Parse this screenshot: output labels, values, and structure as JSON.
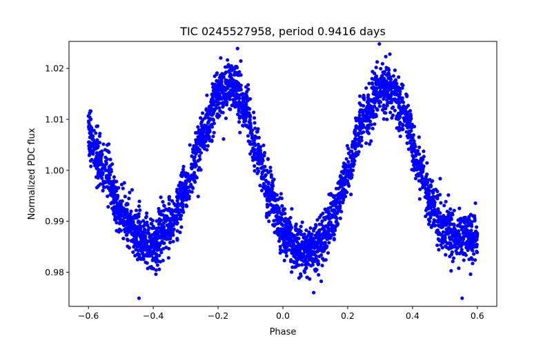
{
  "chart_data": {
    "type": "scatter",
    "title": "TIC 0245527958, period 0.9416 days",
    "xlabel": "Phase",
    "ylabel": "Normalized PDC flux",
    "xlim": [
      -0.66,
      0.66
    ],
    "ylim": [
      0.9733,
      1.0253
    ],
    "xticks": [
      -0.6,
      -0.4,
      -0.2,
      0.0,
      0.2,
      0.4,
      0.6
    ],
    "xtick_labels": [
      "−0.6",
      "−0.4",
      "−0.2",
      "0.0",
      "0.2",
      "0.4",
      "0.6"
    ],
    "yticks": [
      0.98,
      0.99,
      1.0,
      1.01,
      1.02
    ],
    "ytick_labels": [
      "0.98",
      "0.99",
      "1.00",
      "1.01",
      "1.02"
    ],
    "grid": false,
    "legend": "none",
    "series": [
      {
        "color": "#0000ff",
        "marker": "circle",
        "x_range": [
          -0.6,
          0.6
        ],
        "trend": {
          "x": [
            -0.6,
            -0.55,
            -0.5,
            -0.45,
            -0.4,
            -0.35,
            -0.3,
            -0.25,
            -0.2,
            -0.16,
            -0.12,
            -0.08,
            -0.04,
            0.0,
            0.04,
            0.08,
            0.12,
            0.16,
            0.2,
            0.25,
            0.3,
            0.34,
            0.38,
            0.42,
            0.46,
            0.5,
            0.55,
            0.6
          ],
          "y": [
            1.007,
            1.0,
            0.992,
            0.987,
            0.986,
            0.989,
            0.996,
            1.006,
            1.015,
            1.017,
            1.013,
            1.004,
            0.995,
            0.988,
            0.985,
            0.984,
            0.986,
            0.992,
            1.0,
            1.01,
            1.016,
            1.016,
            1.01,
            1.001,
            0.993,
            0.988,
            0.987,
            0.987
          ]
        },
        "scatter_std": 0.0025,
        "outliers": [
          {
            "x": -0.444,
            "y": 0.9749
          },
          {
            "x": -0.14,
            "y": 1.0239
          },
          {
            "x": 0.095,
            "y": 0.976
          },
          {
            "x": 0.553,
            "y": 0.9749
          },
          {
            "x": 0.33,
            "y": 1.0228
          }
        ]
      }
    ]
  }
}
